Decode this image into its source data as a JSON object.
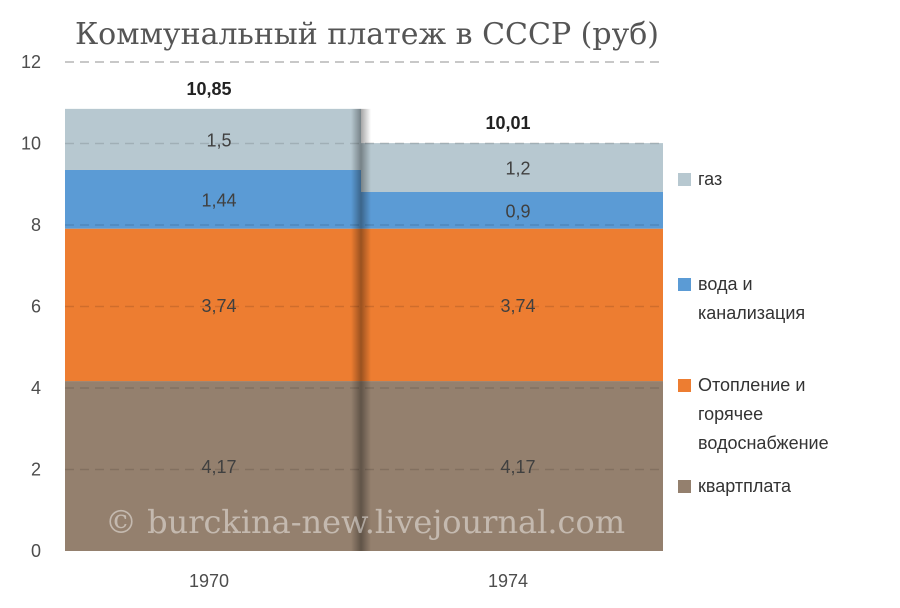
{
  "chart_data": {
    "type": "bar",
    "stacked": true,
    "title": "Коммунальный платеж в СССР (руб)",
    "categories": [
      "1970",
      "1974"
    ],
    "series": [
      {
        "name": "квартплата",
        "values": [
          4.17,
          4.17
        ],
        "labels": [
          "4,17",
          "4,17"
        ],
        "color": "#94806e"
      },
      {
        "name": "Отопление и горячее водоснабжение",
        "legend_lines": [
          "Отопление и",
          "горячее",
          "водоснабжение"
        ],
        "values": [
          3.74,
          3.74
        ],
        "labels": [
          "3,74",
          "3,74"
        ],
        "color": "#ed7d31"
      },
      {
        "name": "вода и канализация",
        "legend_lines": [
          "вода и",
          "канализация"
        ],
        "values": [
          1.44,
          0.9
        ],
        "labels": [
          "1,44",
          "0,9"
        ],
        "color": "#5b9bd5"
      },
      {
        "name": "газ",
        "values": [
          1.5,
          1.2
        ],
        "labels": [
          "1,5",
          "1,2"
        ],
        "color": "#b7c8d0"
      }
    ],
    "totals": [
      10.85,
      10.01
    ],
    "total_labels": [
      "10,85",
      "10,01"
    ],
    "ylim": [
      0,
      12
    ],
    "yticks": [
      0,
      2,
      4,
      6,
      8,
      10,
      12
    ],
    "grid": true,
    "legend_position": "right"
  },
  "watermark": "© burckina-new.livejournal.com"
}
